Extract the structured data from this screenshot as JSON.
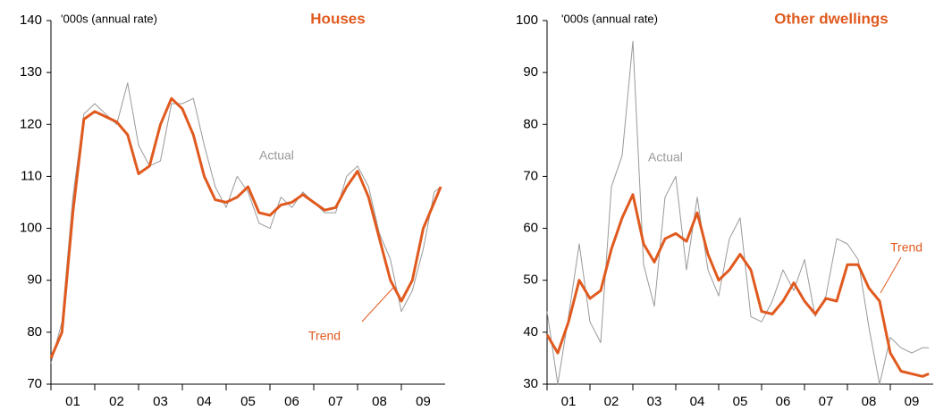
{
  "chart_data": [
    {
      "type": "line",
      "title": "Houses",
      "ylabel": "'000s (annual rate)",
      "annotations": [
        "Actual",
        "Trend"
      ],
      "x": [
        2001.0,
        2001.25,
        2001.5,
        2001.75,
        2002.0,
        2002.25,
        2002.5,
        2002.75,
        2003.0,
        2003.25,
        2003.5,
        2003.75,
        2004.0,
        2004.25,
        2004.5,
        2004.75,
        2005.0,
        2005.25,
        2005.5,
        2005.75,
        2006.0,
        2006.25,
        2006.5,
        2006.75,
        2007.0,
        2007.25,
        2007.5,
        2007.75,
        2008.0,
        2008.25,
        2008.5,
        2008.75,
        2009.0,
        2009.25,
        2009.5,
        2009.75,
        2009.9
      ],
      "series": [
        {
          "name": "Actual",
          "color": "#999999",
          "values": [
            74,
            82,
            106,
            122,
            124,
            122,
            120,
            128,
            116,
            112,
            113,
            124,
            124,
            125,
            116,
            108,
            104,
            110,
            107,
            101,
            100,
            106,
            104,
            107,
            105,
            103,
            103,
            110,
            112,
            108,
            99,
            94,
            84,
            88,
            96,
            107,
            108
          ]
        },
        {
          "name": "Trend",
          "color": "#e05a1f",
          "values": [
            75,
            80,
            103,
            121,
            122.5,
            121.5,
            120.5,
            118,
            110.5,
            112,
            120,
            125,
            123,
            118,
            110,
            105.5,
            105,
            106,
            108,
            103,
            102.5,
            104.5,
            105,
            106.5,
            105,
            103.5,
            104,
            108,
            111,
            106,
            98,
            90,
            86,
            90,
            100,
            105,
            108
          ]
        }
      ],
      "xlim": [
        2001,
        2010
      ],
      "xticks": [
        {
          "value": 2001.5,
          "label": "01"
        },
        {
          "value": 2002.5,
          "label": "02"
        },
        {
          "value": 2003.5,
          "label": "03"
        },
        {
          "value": 2004.5,
          "label": "04"
        },
        {
          "value": 2005.5,
          "label": "05"
        },
        {
          "value": 2006.5,
          "label": "06"
        },
        {
          "value": 2007.5,
          "label": "07"
        },
        {
          "value": 2008.5,
          "label": "08"
        },
        {
          "value": 2009.5,
          "label": "09"
        }
      ],
      "ylim": [
        70,
        140
      ],
      "yticks": [
        70,
        80,
        90,
        100,
        110,
        120,
        130,
        140
      ]
    },
    {
      "type": "line",
      "title": "Other dwellings",
      "ylabel": "'000s (annual rate)",
      "annotations": [
        "Actual",
        "Trend"
      ],
      "x": [
        2001.0,
        2001.25,
        2001.5,
        2001.75,
        2002.0,
        2002.25,
        2002.5,
        2002.75,
        2003.0,
        2003.25,
        2003.5,
        2003.75,
        2004.0,
        2004.25,
        2004.5,
        2004.75,
        2005.0,
        2005.25,
        2005.5,
        2005.75,
        2006.0,
        2006.25,
        2006.5,
        2006.75,
        2007.0,
        2007.25,
        2007.5,
        2007.75,
        2008.0,
        2008.25,
        2008.5,
        2008.75,
        2009.0,
        2009.25,
        2009.5,
        2009.75,
        2009.9
      ],
      "series": [
        {
          "name": "Actual",
          "color": "#999999",
          "values": [
            44,
            30,
            43,
            57,
            42,
            38,
            68,
            74,
            96,
            53,
            45,
            66,
            70,
            52,
            66,
            52,
            47,
            58,
            62,
            43,
            42,
            46,
            52,
            48,
            54,
            43,
            47,
            58,
            57,
            54,
            41,
            30,
            39,
            37,
            36,
            37,
            37
          ]
        },
        {
          "name": "Trend",
          "color": "#e05a1f",
          "values": [
            39.5,
            36,
            42,
            50,
            46.5,
            48,
            56,
            62,
            66.5,
            57,
            53.5,
            58,
            59,
            57.5,
            63,
            55,
            50,
            52,
            55,
            52,
            44,
            43.5,
            46,
            49.5,
            46,
            43.5,
            46.5,
            46,
            53,
            53,
            48.5,
            46,
            36,
            32.5,
            32,
            31.5,
            32
          ]
        }
      ],
      "xlim": [
        2001,
        2010
      ],
      "xticks": [
        {
          "value": 2001.5,
          "label": "01"
        },
        {
          "value": 2002.5,
          "label": "02"
        },
        {
          "value": 2003.5,
          "label": "03"
        },
        {
          "value": 2004.5,
          "label": "04"
        },
        {
          "value": 2005.5,
          "label": "05"
        },
        {
          "value": 2006.5,
          "label": "06"
        },
        {
          "value": 2007.5,
          "label": "07"
        },
        {
          "value": 2008.5,
          "label": "08"
        },
        {
          "value": 2009.5,
          "label": "09"
        }
      ],
      "ylim": [
        30,
        100
      ],
      "yticks": [
        30,
        40,
        50,
        60,
        70,
        80,
        90,
        100
      ]
    }
  ]
}
